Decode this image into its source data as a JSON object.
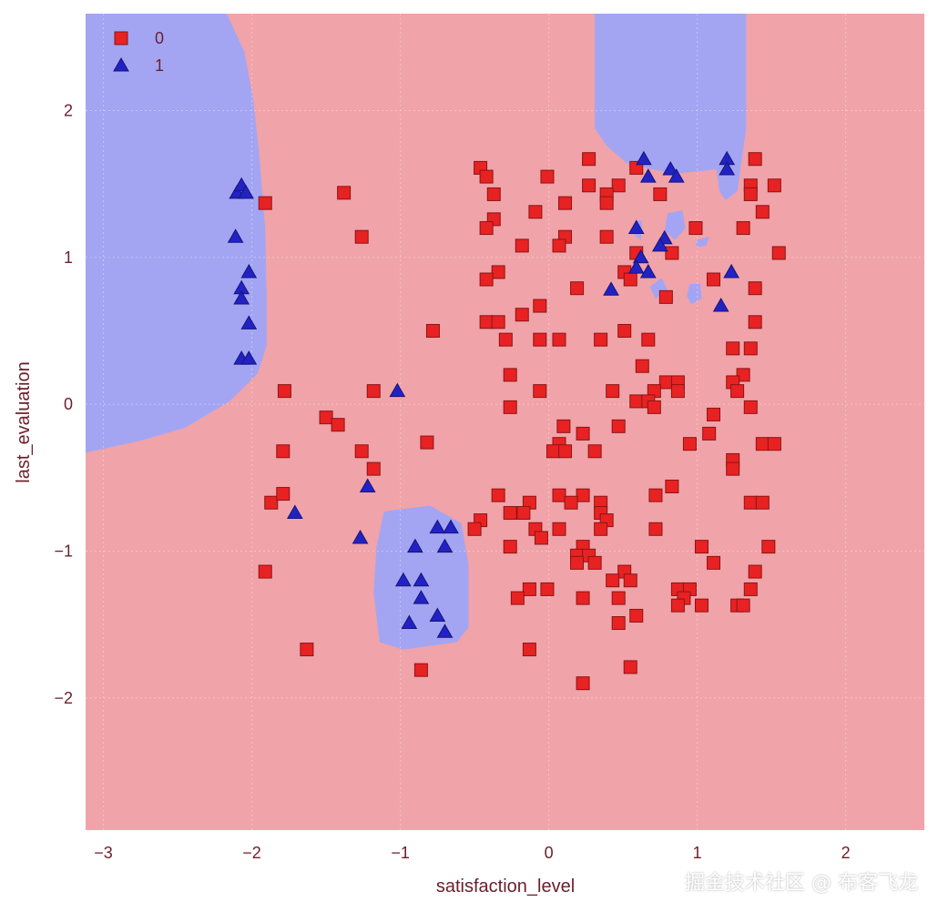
{
  "watermark": "掘金技术社区 @ 布客飞龙",
  "chart_data": {
    "type": "scatter",
    "title": "",
    "xlabel": "satisfaction_level",
    "ylabel": "last_evaluation",
    "xlim": [
      -3.12,
      2.53
    ],
    "ylim": [
      -2.9,
      2.66
    ],
    "xticks": [
      -3,
      -2,
      -1,
      0,
      1,
      2
    ],
    "yticks": [
      -2,
      -1,
      0,
      1,
      2
    ],
    "xtick_labels": [
      "−3",
      "−2",
      "−1",
      "0",
      "1",
      "2"
    ],
    "ytick_labels": [
      "−2",
      "−1",
      "0",
      "1",
      "2"
    ],
    "grid": true,
    "legend": {
      "placement": "top-left",
      "entries": [
        "0",
        "1"
      ]
    },
    "colors": {
      "background_class0": "#f0a3a9",
      "region_class1": "#a3a5f3",
      "class0": "#e82222",
      "class1": "#2222c4",
      "label": "#6b1f2a"
    },
    "decision_regions_class1": [
      [
        [
          -3.12,
          2.66
        ],
        [
          -2.17,
          2.66
        ],
        [
          -2.05,
          2.4
        ],
        [
          -1.99,
          2.07
        ],
        [
          -1.95,
          1.7
        ],
        [
          -1.91,
          1.2
        ],
        [
          -1.9,
          0.71
        ],
        [
          -1.9,
          0.4
        ],
        [
          -1.96,
          0.21
        ],
        [
          -2.15,
          0.02
        ],
        [
          -2.45,
          -0.16
        ],
        [
          -2.76,
          -0.25
        ],
        [
          -3.12,
          -0.33
        ]
      ],
      [
        [
          -1.11,
          -0.73
        ],
        [
          -0.8,
          -0.69
        ],
        [
          -0.59,
          -0.81
        ],
        [
          -0.54,
          -1.09
        ],
        [
          -0.54,
          -1.52
        ],
        [
          -0.62,
          -1.62
        ],
        [
          -0.98,
          -1.67
        ],
        [
          -1.14,
          -1.62
        ],
        [
          -1.18,
          -1.28
        ],
        [
          -1.16,
          -0.97
        ]
      ],
      [
        [
          0.31,
          2.66
        ],
        [
          0.31,
          1.88
        ],
        [
          0.39,
          1.76
        ],
        [
          0.54,
          1.63
        ],
        [
          0.85,
          1.57
        ],
        [
          1.13,
          1.6
        ],
        [
          1.15,
          1.45
        ],
        [
          1.19,
          1.39
        ],
        [
          1.27,
          1.45
        ],
        [
          1.33,
          1.88
        ],
        [
          1.33,
          2.66
        ]
      ],
      [
        [
          0.8,
          1.3
        ],
        [
          0.9,
          1.32
        ],
        [
          0.92,
          1.2
        ],
        [
          0.85,
          1.12
        ],
        [
          0.78,
          1.18
        ]
      ],
      [
        [
          0.95,
          0.82
        ],
        [
          1.02,
          0.82
        ],
        [
          1.03,
          0.72
        ],
        [
          0.96,
          0.68
        ],
        [
          0.93,
          0.74
        ]
      ],
      [
        [
          0.68,
          0.8
        ],
        [
          0.76,
          0.86
        ],
        [
          0.8,
          0.78
        ],
        [
          0.72,
          0.72
        ]
      ],
      [
        [
          1.0,
          1.12
        ],
        [
          1.08,
          1.14
        ],
        [
          1.06,
          1.08
        ],
        [
          0.99,
          1.07
        ]
      ],
      [
        [
          0.58,
          1.25
        ],
        [
          0.63,
          1.25
        ],
        [
          0.62,
          1.12
        ],
        [
          0.58,
          1.15
        ]
      ]
    ],
    "series": [
      {
        "name": "0",
        "marker": "square",
        "points": [
          [
            -1.91,
            1.37
          ],
          [
            -1.38,
            1.44
          ],
          [
            -1.26,
            1.14
          ],
          [
            -0.78,
            0.5
          ],
          [
            -1.78,
            0.09
          ],
          [
            -1.18,
            0.09
          ],
          [
            -1.79,
            -0.32
          ],
          [
            -1.26,
            -0.32
          ],
          [
            -1.18,
            -0.44
          ],
          [
            -1.87,
            -0.67
          ],
          [
            -1.79,
            -0.61
          ],
          [
            -1.91,
            -1.14
          ],
          [
            -1.63,
            -1.67
          ],
          [
            -1.5,
            -0.09
          ],
          [
            -1.42,
            -0.14
          ],
          [
            -0.86,
            -1.81
          ],
          [
            -0.82,
            -0.26
          ],
          [
            -0.46,
            1.61
          ],
          [
            -0.42,
            1.55
          ],
          [
            0.27,
            1.67
          ],
          [
            -0.01,
            1.55
          ],
          [
            0.27,
            1.49
          ],
          [
            0.47,
            1.49
          ],
          [
            0.39,
            1.43
          ],
          [
            0.39,
            1.37
          ],
          [
            0.59,
            1.61
          ],
          [
            -0.37,
            1.43
          ],
          [
            0.11,
            1.37
          ],
          [
            -0.09,
            1.31
          ],
          [
            0.75,
            1.43
          ],
          [
            -0.37,
            1.26
          ],
          [
            -0.42,
            1.2
          ],
          [
            0.39,
            1.14
          ],
          [
            0.11,
            1.14
          ],
          [
            0.07,
            1.08
          ],
          [
            -0.18,
            1.08
          ],
          [
            0.59,
            1.03
          ],
          [
            0.83,
            1.03
          ],
          [
            0.99,
            1.2
          ],
          [
            1.31,
            1.2
          ],
          [
            1.44,
            1.31
          ],
          [
            1.36,
            1.49
          ],
          [
            1.36,
            1.43
          ],
          [
            1.52,
            1.49
          ],
          [
            1.39,
            1.67
          ],
          [
            1.55,
            1.03
          ],
          [
            -0.34,
            0.9
          ],
          [
            -0.42,
            0.85
          ],
          [
            0.19,
            0.79
          ],
          [
            0.51,
            0.9
          ],
          [
            0.55,
            0.85
          ],
          [
            0.79,
            0.73
          ],
          [
            1.11,
            0.85
          ],
          [
            1.39,
            0.79
          ],
          [
            -0.06,
            0.67
          ],
          [
            -0.18,
            0.61
          ],
          [
            -0.42,
            0.56
          ],
          [
            -0.34,
            0.56
          ],
          [
            -0.29,
            0.44
          ],
          [
            -0.06,
            0.44
          ],
          [
            0.07,
            0.44
          ],
          [
            0.35,
            0.44
          ],
          [
            0.51,
            0.5
          ],
          [
            0.67,
            0.44
          ],
          [
            1.24,
            0.38
          ],
          [
            1.36,
            0.38
          ],
          [
            1.39,
            0.56
          ],
          [
            0.63,
            0.26
          ],
          [
            -0.26,
            0.2
          ],
          [
            -0.06,
            0.09
          ],
          [
            0.43,
            0.09
          ],
          [
            0.79,
            0.15
          ],
          [
            0.87,
            0.15
          ],
          [
            0.87,
            0.09
          ],
          [
            0.71,
            0.09
          ],
          [
            0.59,
            0.02
          ],
          [
            0.67,
            0.02
          ],
          [
            0.71,
            -0.02
          ],
          [
            -0.26,
            -0.02
          ],
          [
            1.31,
            0.2
          ],
          [
            1.24,
            0.15
          ],
          [
            1.27,
            0.09
          ],
          [
            1.36,
            -0.02
          ],
          [
            1.11,
            -0.07
          ],
          [
            0.1,
            -0.15
          ],
          [
            0.47,
            -0.15
          ],
          [
            0.23,
            -0.2
          ],
          [
            1.08,
            -0.2
          ],
          [
            0.07,
            -0.27
          ],
          [
            0.95,
            -0.27
          ],
          [
            1.44,
            -0.27
          ],
          [
            1.52,
            -0.27
          ],
          [
            0.03,
            -0.32
          ],
          [
            0.11,
            -0.32
          ],
          [
            0.31,
            -0.32
          ],
          [
            1.24,
            -0.38
          ],
          [
            1.24,
            -0.44
          ],
          [
            0.83,
            -0.56
          ],
          [
            1.36,
            -0.67
          ],
          [
            1.44,
            -0.67
          ],
          [
            -0.34,
            -0.62
          ],
          [
            -0.13,
            -0.67
          ],
          [
            0.07,
            -0.62
          ],
          [
            0.23,
            -0.62
          ],
          [
            0.15,
            -0.67
          ],
          [
            -0.26,
            -0.74
          ],
          [
            -0.17,
            -0.74
          ],
          [
            0.35,
            -0.67
          ],
          [
            0.35,
            -0.74
          ],
          [
            0.72,
            -0.62
          ],
          [
            0.39,
            -0.79
          ],
          [
            -0.46,
            -0.79
          ],
          [
            -0.5,
            -0.85
          ],
          [
            -0.09,
            -0.85
          ],
          [
            -0.05,
            -0.91
          ],
          [
            0.07,
            -0.85
          ],
          [
            0.35,
            -0.85
          ],
          [
            0.72,
            -0.85
          ],
          [
            -0.26,
            -0.97
          ],
          [
            0.23,
            -0.97
          ],
          [
            0.19,
            -1.03
          ],
          [
            0.27,
            -1.03
          ],
          [
            0.19,
            -1.08
          ],
          [
            0.31,
            -1.08
          ],
          [
            1.03,
            -0.97
          ],
          [
            1.48,
            -0.97
          ],
          [
            1.11,
            -1.08
          ],
          [
            0.51,
            -1.14
          ],
          [
            0.43,
            -1.2
          ],
          [
            0.55,
            -1.2
          ],
          [
            1.39,
            -1.14
          ],
          [
            -0.13,
            -1.26
          ],
          [
            -0.01,
            -1.26
          ],
          [
            -0.21,
            -1.32
          ],
          [
            0.23,
            -1.32
          ],
          [
            0.47,
            -1.32
          ],
          [
            0.87,
            -1.26
          ],
          [
            0.95,
            -1.26
          ],
          [
            0.91,
            -1.32
          ],
          [
            0.87,
            -1.37
          ],
          [
            1.03,
            -1.37
          ],
          [
            1.36,
            -1.26
          ],
          [
            1.27,
            -1.37
          ],
          [
            1.31,
            -1.37
          ],
          [
            0.59,
            -1.44
          ],
          [
            0.47,
            -1.49
          ],
          [
            -0.13,
            -1.67
          ],
          [
            0.55,
            -1.79
          ],
          [
            0.23,
            -1.9
          ]
        ]
      },
      {
        "name": "1",
        "marker": "triangle",
        "points": [
          [
            -2.1,
            1.44
          ],
          [
            -2.07,
            1.49
          ],
          [
            -2.04,
            1.44
          ],
          [
            -2.11,
            1.14
          ],
          [
            -2.07,
            0.79
          ],
          [
            -2.07,
            0.72
          ],
          [
            -2.02,
            0.9
          ],
          [
            -2.02,
            0.55
          ],
          [
            -2.07,
            0.31
          ],
          [
            -2.02,
            0.31
          ],
          [
            -1.02,
            0.09
          ],
          [
            -1.22,
            -0.56
          ],
          [
            -1.71,
            -0.74
          ],
          [
            -1.27,
            -0.91
          ],
          [
            -0.9,
            -0.97
          ],
          [
            -0.75,
            -0.84
          ],
          [
            -0.66,
            -0.84
          ],
          [
            -0.7,
            -0.97
          ],
          [
            -0.98,
            -1.2
          ],
          [
            -0.86,
            -1.2
          ],
          [
            -0.86,
            -1.32
          ],
          [
            -0.94,
            -1.49
          ],
          [
            -0.75,
            -1.44
          ],
          [
            -0.7,
            -1.55
          ],
          [
            0.64,
            1.67
          ],
          [
            0.67,
            1.55
          ],
          [
            0.82,
            1.6
          ],
          [
            0.86,
            1.55
          ],
          [
            1.2,
            1.67
          ],
          [
            1.2,
            1.6
          ],
          [
            0.59,
            1.2
          ],
          [
            0.62,
            1.0
          ],
          [
            0.78,
            1.13
          ],
          [
            0.75,
            1.08
          ],
          [
            0.59,
            0.93
          ],
          [
            0.67,
            0.9
          ],
          [
            0.42,
            0.78
          ],
          [
            1.23,
            0.9
          ],
          [
            1.16,
            0.67
          ]
        ]
      }
    ]
  }
}
